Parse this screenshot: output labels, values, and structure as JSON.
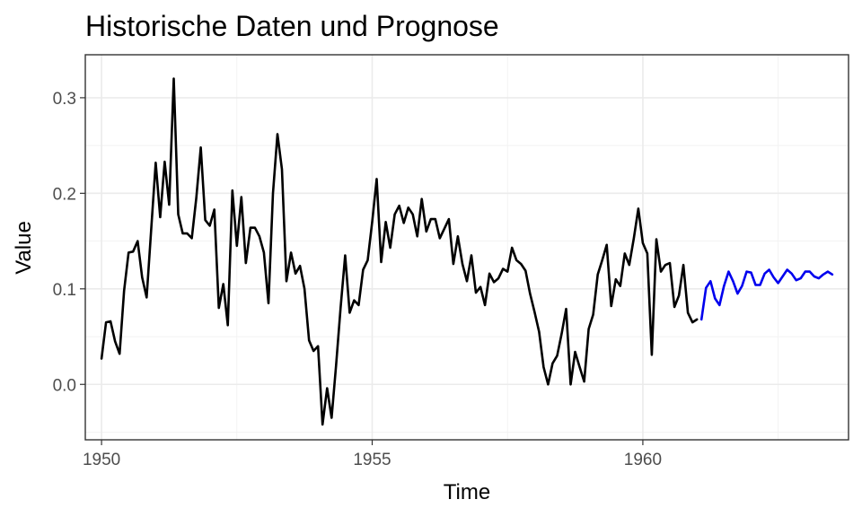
{
  "chart_data": {
    "type": "line",
    "title": "Historische Daten und Prognose",
    "xlabel": "Time",
    "ylabel": "Value",
    "xlim": [
      1949.7,
      1963.8
    ],
    "ylim": [
      -0.058,
      0.345
    ],
    "x_ticks": [
      1950,
      1955,
      1960
    ],
    "x_tick_labels": [
      "1950",
      "1955",
      "1960"
    ],
    "y_ticks": [
      0.0,
      0.1,
      0.2,
      0.3
    ],
    "y_tick_labels": [
      "0.0",
      "0.1",
      "0.2",
      "0.3"
    ],
    "grid": true,
    "legend": "none",
    "series": [
      {
        "role": "historical",
        "color": "#000000",
        "x_start": 1950.0,
        "x_step": 0.08333,
        "values": [
          0.027,
          0.065,
          0.066,
          0.045,
          0.032,
          0.098,
          0.138,
          0.139,
          0.15,
          0.112,
          0.091,
          0.161,
          0.232,
          0.175,
          0.233,
          0.188,
          0.32,
          0.178,
          0.158,
          0.158,
          0.153,
          0.195,
          0.248,
          0.172,
          0.166,
          0.183,
          0.08,
          0.105,
          0.062,
          0.203,
          0.145,
          0.196,
          0.127,
          0.164,
          0.164,
          0.155,
          0.138,
          0.085,
          0.2,
          0.262,
          0.225,
          0.108,
          0.138,
          0.116,
          0.124,
          0.1,
          0.046,
          0.035,
          0.04,
          -0.042,
          -0.004,
          -0.035,
          0.02,
          0.08,
          0.135,
          0.075,
          0.088,
          0.083,
          0.12,
          0.13,
          0.17,
          0.215,
          0.128,
          0.17,
          0.143,
          0.178,
          0.187,
          0.169,
          0.185,
          0.178,
          0.155,
          0.194,
          0.16,
          0.173,
          0.173,
          0.153,
          0.163,
          0.173,
          0.126,
          0.155,
          0.126,
          0.108,
          0.135,
          0.096,
          0.102,
          0.083,
          0.116,
          0.107,
          0.111,
          0.121,
          0.118,
          0.143,
          0.13,
          0.126,
          0.119,
          0.095,
          0.076,
          0.055,
          0.018,
          0.0,
          0.022,
          0.03,
          0.053,
          0.079,
          0.0,
          0.034,
          0.018,
          0.003,
          0.058,
          0.073,
          0.115,
          0.13,
          0.146,
          0.082,
          0.11,
          0.103,
          0.137,
          0.125,
          0.153,
          0.184,
          0.148,
          0.137,
          0.031,
          0.152,
          0.118,
          0.125,
          0.127,
          0.081,
          0.093,
          0.125,
          0.075,
          0.065,
          0.068
        ]
      },
      {
        "role": "forecast",
        "color": "#0000ee",
        "x_start": 1961.0833,
        "x_step": 0.08333,
        "values": [
          0.068,
          0.101,
          0.108,
          0.09,
          0.083,
          0.103,
          0.118,
          0.108,
          0.095,
          0.103,
          0.118,
          0.117,
          0.104,
          0.104,
          0.116,
          0.12,
          0.112,
          0.106,
          0.113,
          0.12,
          0.116,
          0.109,
          0.111,
          0.118,
          0.118,
          0.113,
          0.111,
          0.115,
          0.118,
          0.115
        ]
      }
    ]
  }
}
